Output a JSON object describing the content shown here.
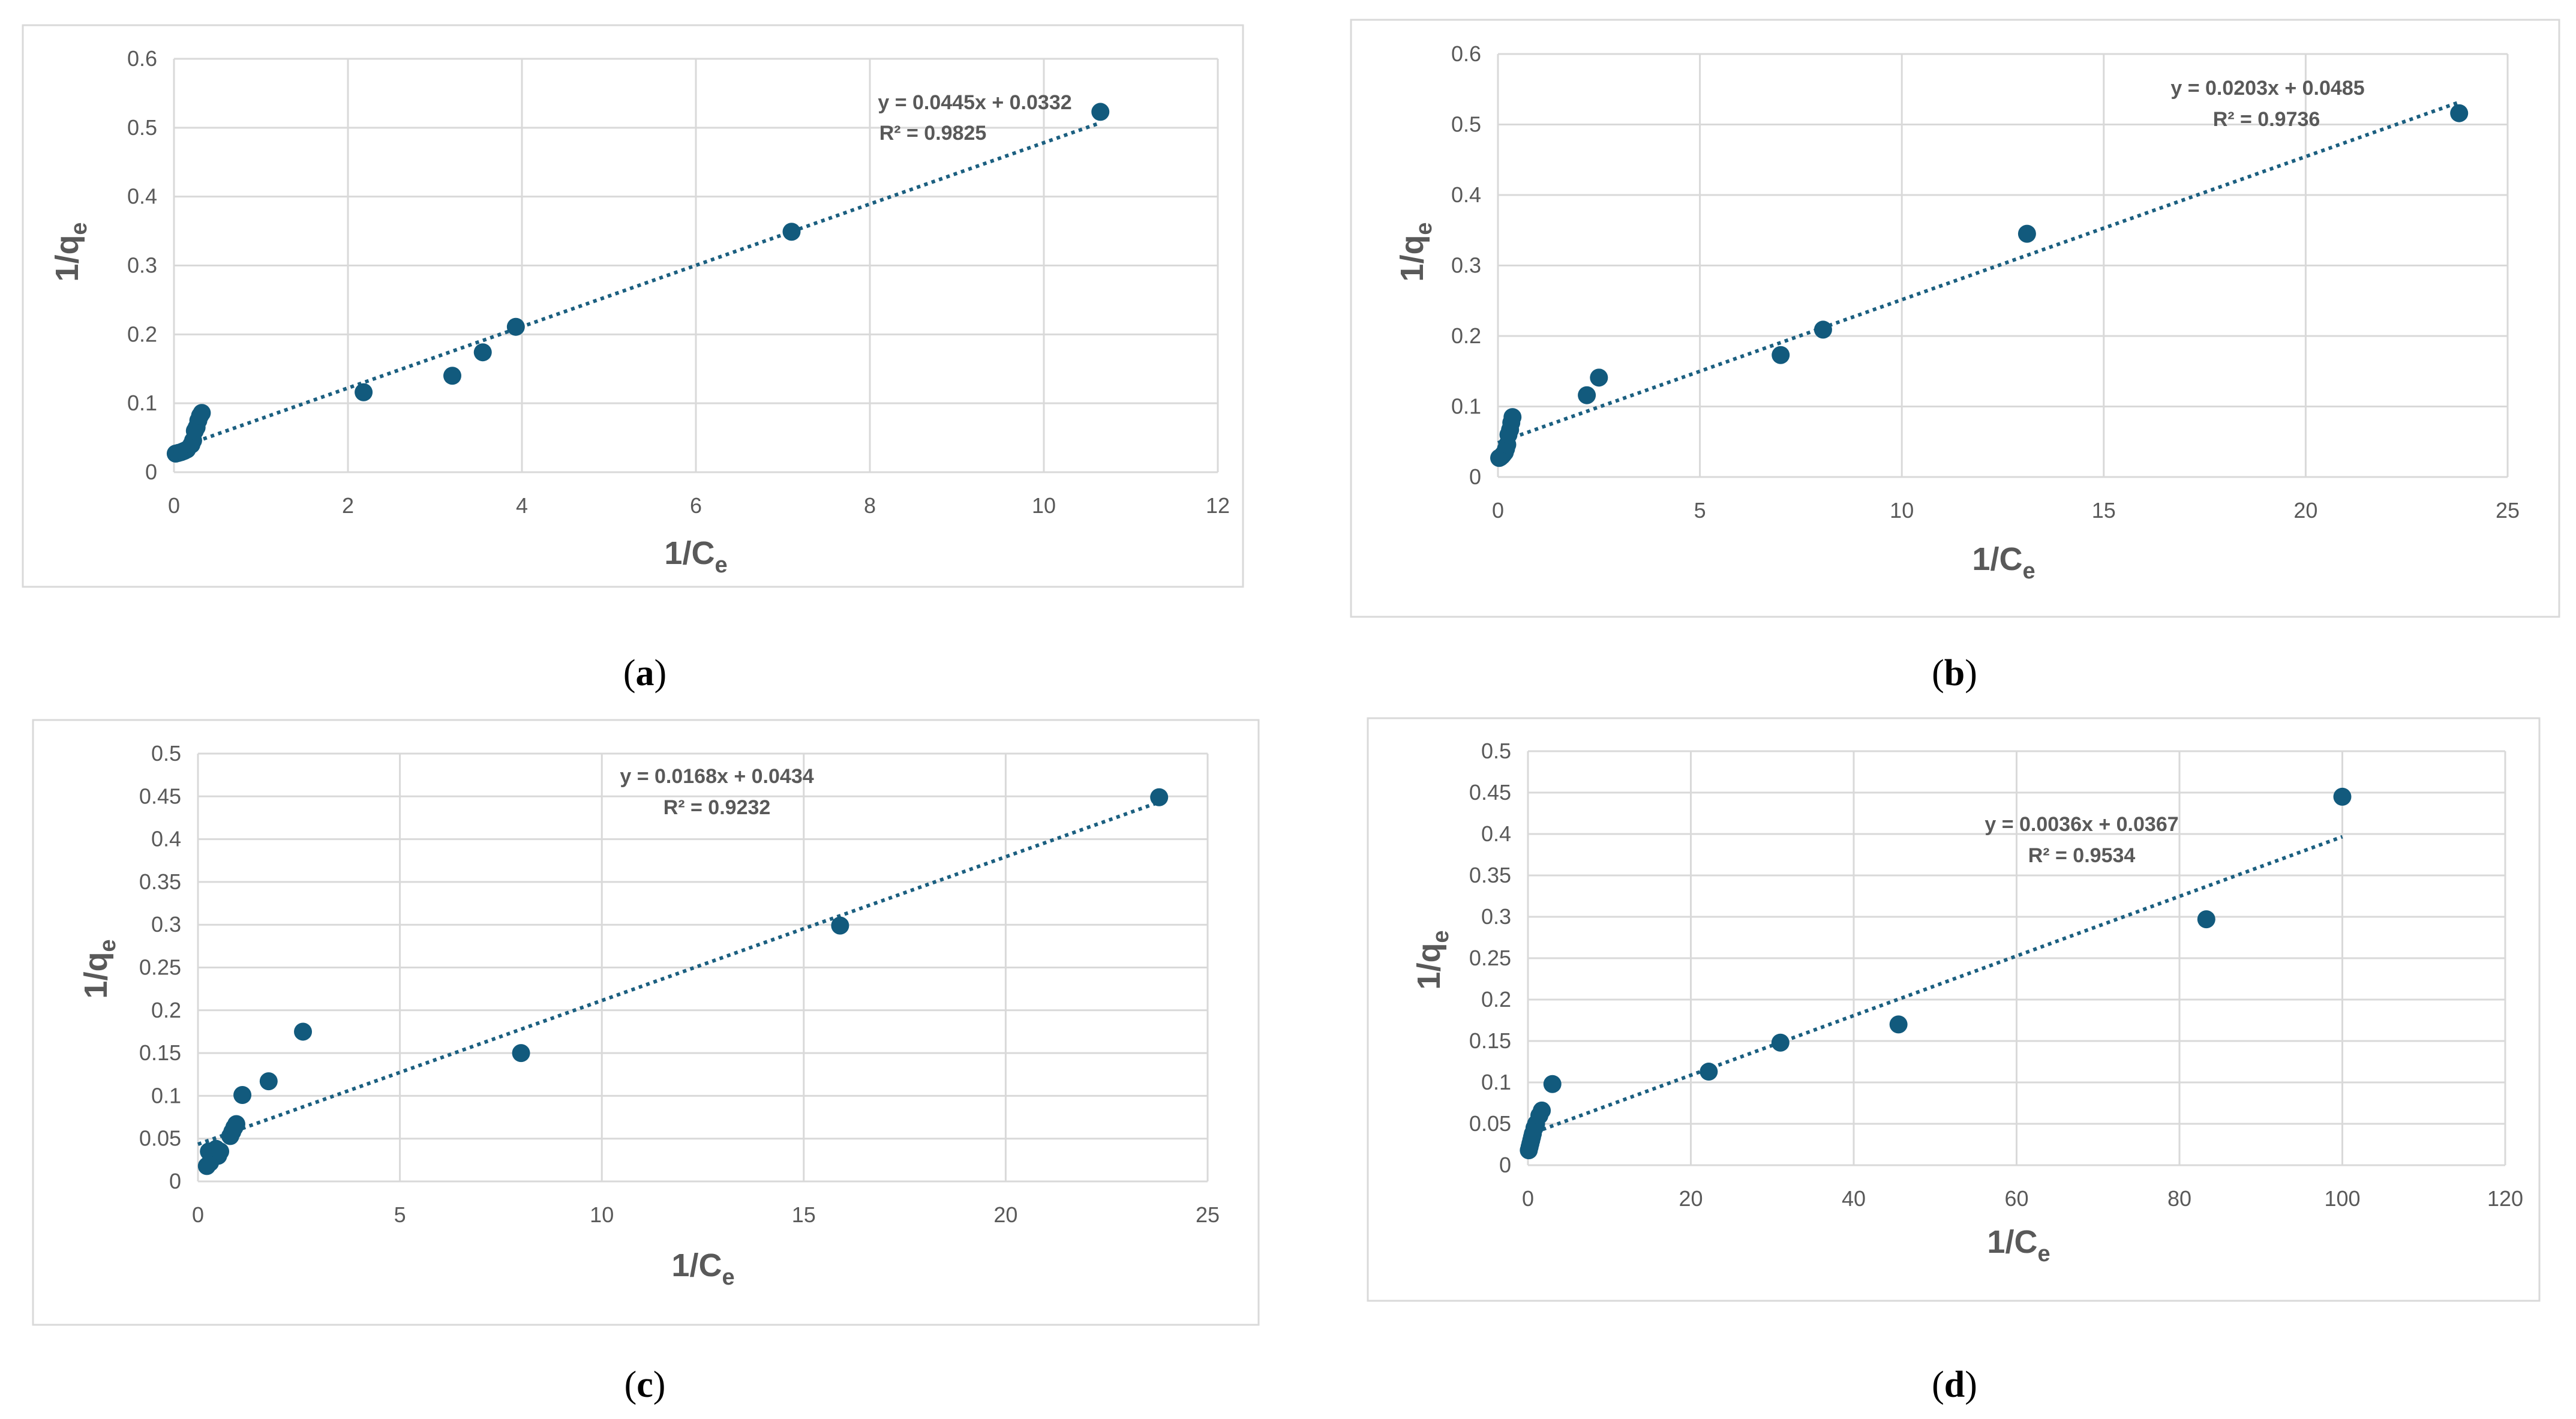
{
  "colors": {
    "marker": "#125a7d",
    "trendline": "#1b5f80",
    "text": "#595959",
    "grid": "#d9d9d9"
  },
  "chart_data": [
    {
      "type": "scatter",
      "caption": "a",
      "xlabel": "1/C",
      "xlabel_sub": "e",
      "ylabel": "1/q",
      "ylabel_sub": "e",
      "xlim": [
        0,
        12
      ],
      "ylim": [
        0,
        0.6
      ],
      "xticks": [
        0,
        2,
        4,
        6,
        8,
        10,
        12
      ],
      "yticks": [
        0,
        0.1,
        0.2,
        0.3,
        0.4,
        0.5,
        0.6
      ],
      "grid": true,
      "x": [
        0.02,
        0.05,
        0.08,
        0.1,
        0.12,
        0.15,
        0.2,
        0.22,
        0.24,
        0.26,
        0.28,
        0.3,
        0.32,
        2.18,
        3.2,
        3.55,
        3.93,
        7.1,
        10.65
      ],
      "y": [
        0.027,
        0.028,
        0.029,
        0.03,
        0.031,
        0.033,
        0.04,
        0.046,
        0.06,
        0.065,
        0.075,
        0.082,
        0.086,
        0.116,
        0.14,
        0.174,
        0.211,
        0.349,
        0.523
      ],
      "trendline": {
        "slope": 0.0445,
        "intercept": 0.0332,
        "x_range": [
          0,
          10.65
        ]
      },
      "equation": "y = 0.0445x + 0.0332",
      "r2": "R² = 0.9825"
    },
    {
      "type": "scatter",
      "caption": "b",
      "xlabel": "1/C",
      "xlabel_sub": "e",
      "ylabel": "1/q",
      "ylabel_sub": "e",
      "xlim": [
        0,
        25
      ],
      "ylim": [
        0,
        0.6
      ],
      "xticks": [
        0,
        5,
        10,
        15,
        20,
        25
      ],
      "yticks": [
        0,
        0.1,
        0.2,
        0.3,
        0.4,
        0.5,
        0.6
      ],
      "grid": true,
      "x": [
        0.03,
        0.06,
        0.1,
        0.13,
        0.17,
        0.2,
        0.23,
        0.26,
        0.3,
        0.33,
        0.36,
        2.2,
        2.5,
        7.0,
        8.05,
        13.1,
        23.8
      ],
      "y": [
        0.027,
        0.028,
        0.03,
        0.032,
        0.035,
        0.04,
        0.046,
        0.06,
        0.067,
        0.077,
        0.085,
        0.116,
        0.141,
        0.173,
        0.209,
        0.345,
        0.516
      ],
      "trendline": {
        "slope": 0.0203,
        "intercept": 0.0485,
        "x_range": [
          0,
          23.8
        ]
      },
      "equation": "y = 0.0203x + 0.0485",
      "r2": "R² = 0.9736"
    },
    {
      "type": "scatter",
      "caption": "c",
      "xlabel": "1/C",
      "xlabel_sub": "e",
      "ylabel": "1/q",
      "ylabel_sub": "e",
      "xlim": [
        0,
        25
      ],
      "ylim": [
        0,
        0.5
      ],
      "xticks": [
        0,
        5,
        10,
        15,
        20,
        25
      ],
      "yticks": [
        0,
        0.05,
        0.1,
        0.15,
        0.2,
        0.25,
        0.3,
        0.35,
        0.4,
        0.45,
        0.5
      ],
      "grid": true,
      "x": [
        0.22,
        0.27,
        0.3,
        0.35,
        0.4,
        0.45,
        0.5,
        0.55,
        0.8,
        0.85,
        0.9,
        0.95,
        1.1,
        1.75,
        2.6,
        8.0,
        15.9,
        23.8
      ],
      "y": [
        0.018,
        0.035,
        0.022,
        0.027,
        0.032,
        0.038,
        0.03,
        0.035,
        0.053,
        0.058,
        0.063,
        0.067,
        0.101,
        0.117,
        0.175,
        0.15,
        0.299,
        0.449
      ],
      "trendline": {
        "slope": 0.0168,
        "intercept": 0.0434,
        "x_range": [
          0,
          23.8
        ]
      },
      "equation": "y = 0.0168x + 0.0434",
      "r2": "R² = 0.9232"
    },
    {
      "type": "scatter",
      "caption": "d",
      "xlabel": "1/C",
      "xlabel_sub": "e",
      "ylabel": "1/q",
      "ylabel_sub": "e",
      "xlim": [
        0,
        120
      ],
      "ylim": [
        0,
        0.5
      ],
      "xticks": [
        0,
        20,
        40,
        60,
        80,
        100,
        120
      ],
      "yticks": [
        0,
        0.05,
        0.1,
        0.15,
        0.2,
        0.25,
        0.3,
        0.35,
        0.4,
        0.45,
        0.5
      ],
      "grid": true,
      "x": [
        0.1,
        0.2,
        0.3,
        0.4,
        0.5,
        0.6,
        0.8,
        1.0,
        1.4,
        1.7,
        3.0,
        22.2,
        31.0,
        45.5,
        83.3,
        100
      ],
      "y": [
        0.018,
        0.022,
        0.026,
        0.03,
        0.034,
        0.038,
        0.045,
        0.05,
        0.06,
        0.066,
        0.098,
        0.113,
        0.148,
        0.17,
        0.297,
        0.445
      ],
      "trendline": {
        "slope": 0.0036,
        "intercept": 0.0367,
        "x_range": [
          0,
          100
        ]
      },
      "equation": "y = 0.0036x + 0.0367",
      "r2": "R² = 0.9534"
    }
  ]
}
